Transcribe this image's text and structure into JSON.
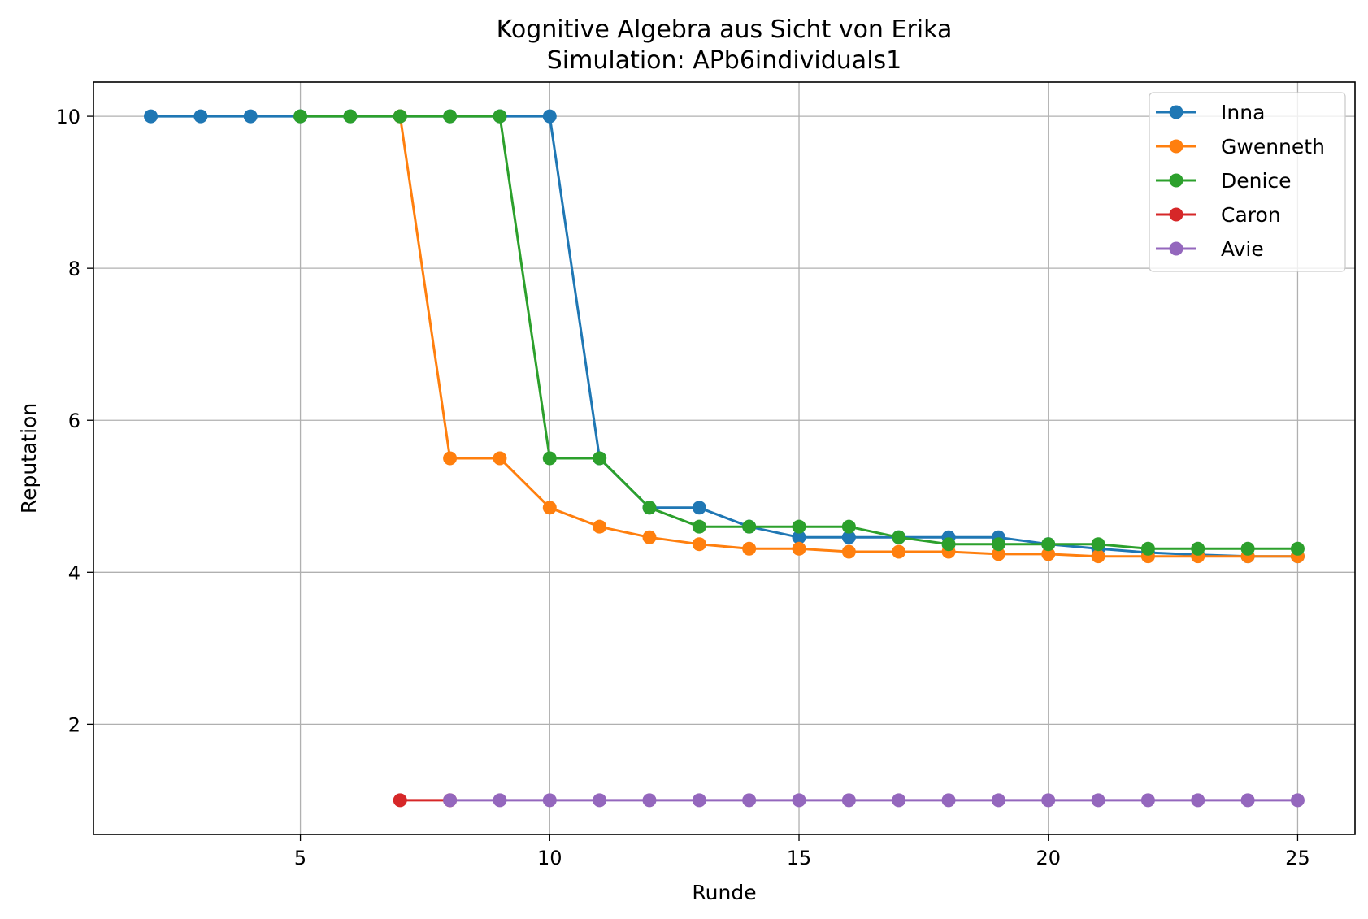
{
  "chart_data": {
    "type": "line",
    "title": "Kognitive Algebra aus Sicht von Erika",
    "subtitle": "Simulation: APb6individuals1",
    "xlabel": "Runde",
    "ylabel": "Reputation",
    "xlim": [
      0.85,
      26.15
    ],
    "ylim": [
      0.55,
      10.45
    ],
    "xticks": [
      5,
      10,
      15,
      20,
      25
    ],
    "yticks": [
      2,
      4,
      6,
      8,
      10
    ],
    "grid": true,
    "legend_position": "top-right",
    "series": [
      {
        "name": "Inna",
        "color": "#1f77b4",
        "x": [
          2,
          3,
          4,
          5,
          6,
          7,
          8,
          9,
          10,
          11,
          12,
          13,
          14,
          15,
          16,
          17,
          18,
          19,
          20,
          21,
          22,
          23,
          24,
          25
        ],
        "y": [
          10,
          10,
          10,
          10,
          10,
          10,
          10,
          10,
          10,
          5.5,
          4.85,
          4.85,
          4.6,
          4.46,
          4.46,
          4.46,
          4.46,
          4.46,
          4.37,
          4.31,
          4.26,
          4.23,
          4.21,
          4.21
        ]
      },
      {
        "name": "Gwenneth",
        "color": "#ff7f0e",
        "x": [
          7,
          8,
          9,
          10,
          11,
          12,
          13,
          14,
          15,
          16,
          17,
          18,
          19,
          20,
          21,
          22,
          23,
          24,
          25
        ],
        "y": [
          10,
          5.5,
          5.5,
          4.85,
          4.6,
          4.46,
          4.37,
          4.31,
          4.31,
          4.27,
          4.27,
          4.27,
          4.24,
          4.24,
          4.21,
          4.21,
          4.21,
          4.21,
          4.21
        ]
      },
      {
        "name": "Denice",
        "color": "#2ca02c",
        "x": [
          5,
          6,
          7,
          8,
          9,
          10,
          11,
          12,
          13,
          14,
          15,
          16,
          17,
          18,
          19,
          20,
          21,
          22,
          23,
          24,
          25
        ],
        "y": [
          10,
          10,
          10,
          10,
          10,
          5.5,
          5.5,
          4.85,
          4.6,
          4.6,
          4.6,
          4.6,
          4.46,
          4.37,
          4.37,
          4.37,
          4.37,
          4.31,
          4.31,
          4.31,
          4.31
        ]
      },
      {
        "name": "Caron",
        "color": "#d62728",
        "x": [
          7,
          8
        ],
        "y": [
          1,
          1
        ]
      },
      {
        "name": "Avie",
        "color": "#9467bd",
        "x": [
          8,
          9,
          10,
          11,
          12,
          13,
          14,
          15,
          16,
          17,
          18,
          19,
          20,
          21,
          22,
          23,
          24,
          25
        ],
        "y": [
          1,
          1,
          1,
          1,
          1,
          1,
          1,
          1,
          1,
          1,
          1,
          1,
          1,
          1,
          1,
          1,
          1,
          1
        ]
      }
    ]
  }
}
